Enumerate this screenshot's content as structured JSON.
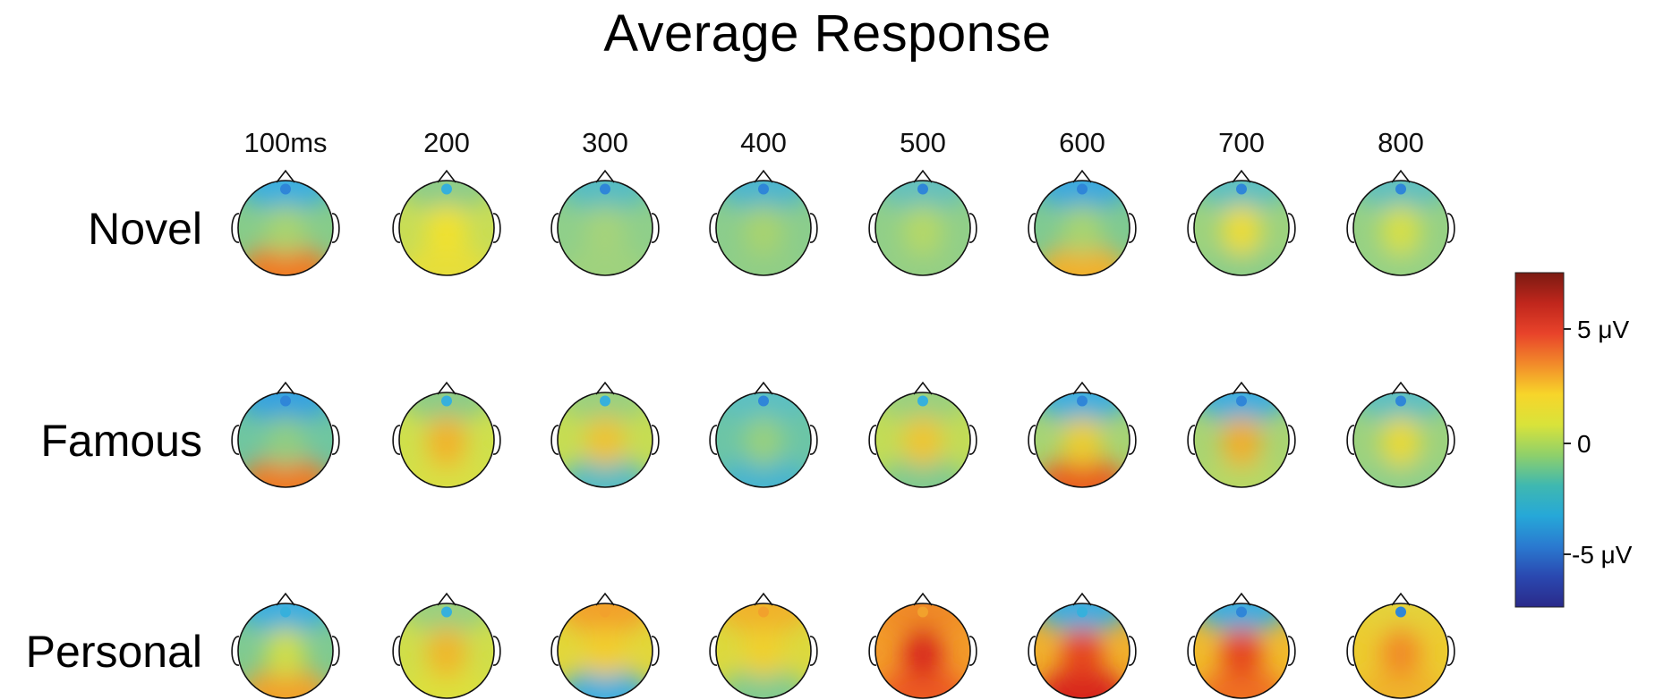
{
  "title": "Average Response",
  "time_labels": [
    "100ms",
    "200",
    "300",
    "400",
    "500",
    "600",
    "700",
    "800"
  ],
  "conditions": [
    "Novel",
    "Famous",
    "Personal"
  ],
  "colorbar": {
    "labels": [
      "5 μV",
      "0",
      "-5 μV"
    ],
    "stops": [
      "#7a1a12",
      "#c0261c",
      "#e8432a",
      "#f28a2a",
      "#f7d52a",
      "#d9e33a",
      "#8fd06a",
      "#3fb8b0",
      "#26a8d8",
      "#2a7ad0",
      "#2a48b0",
      "#2a2a8a"
    ]
  },
  "palette": {
    "neg2": "#2a7fd2",
    "neg1": "#36b7d9",
    "zero": "#7fcf94",
    "pos1": "#e7e23a",
    "pos2": "#f2a12c",
    "pos3": "#e5431f"
  },
  "maps": [
    [
      {
        "base": "#86cc8a",
        "front": "#3aaee0",
        "center": "#a8d470",
        "back": "#f07a22",
        "spot": "#2f86d8"
      },
      {
        "base": "#c8dd56",
        "front": "#8ccc8a",
        "center": "#f2e12e",
        "back": "#e6de3a",
        "spot": "#36b0dc"
      },
      {
        "base": "#8fcf8a",
        "front": "#55bcc4",
        "center": "#a6d37a",
        "back": "#9fd27e",
        "spot": "#2f86d8"
      },
      {
        "base": "#8bcd8c",
        "front": "#4cb5cf",
        "center": "#a9d36e",
        "back": "#90ce86",
        "spot": "#2f86d8"
      },
      {
        "base": "#91cf88",
        "front": "#63c0bd",
        "center": "#b6d866",
        "back": "#94cf84",
        "spot": "#2f86d8"
      },
      {
        "base": "#7fca91",
        "front": "#3aa8df",
        "center": "#a8d470",
        "back": "#f2b02a",
        "spot": "#2f86d8"
      },
      {
        "base": "#9cd27e",
        "front": "#5bbfc2",
        "center": "#efdc34",
        "back": "#8ccd88",
        "spot": "#2f86d8"
      },
      {
        "base": "#96d184",
        "front": "#5fbfc0",
        "center": "#d8df44",
        "back": "#96d184",
        "spot": "#2f86d8"
      }
    ],
    [
      {
        "base": "#6fc6a0",
        "front": "#34a2e0",
        "center": "#90ce82",
        "back": "#ef7a24",
        "spot": "#2f86d8"
      },
      {
        "base": "#cfe04c",
        "front": "#8ccc88",
        "center": "#f2b22c",
        "back": "#d8df44",
        "spot": "#36b0dc"
      },
      {
        "base": "#c6dd52",
        "front": "#9ad080",
        "center": "#efc232",
        "back": "#55bcc4",
        "spot": "#36b0dc"
      },
      {
        "base": "#6cc5a6",
        "front": "#5bbfc2",
        "center": "#98d07e",
        "back": "#46b4cf",
        "spot": "#2f86d8"
      },
      {
        "base": "#c2dc56",
        "front": "#9ad080",
        "center": "#f0c430",
        "back": "#7fca91",
        "spot": "#36b0dc"
      },
      {
        "base": "#a6d474",
        "front": "#3aaee0",
        "center": "#eccd32",
        "back": "#e85e22",
        "spot": "#2f86d8"
      },
      {
        "base": "#a9d472",
        "front": "#3aaee0",
        "center": "#f1ad2c",
        "back": "#b6d866",
        "spot": "#2f86d8"
      },
      {
        "base": "#9cd27e",
        "front": "#5bbfc2",
        "center": "#ead934",
        "back": "#8fcf8a",
        "spot": "#2f86d8"
      }
    ],
    [
      {
        "base": "#7fca91",
        "front": "#3aaee0",
        "center": "#d0de4a",
        "back": "#f2a12c",
        "spot": "#36b0dc"
      },
      {
        "base": "#d0de4a",
        "front": "#9ad080",
        "center": "#f0b62c",
        "back": "#dce03e",
        "spot": "#36b0dc"
      },
      {
        "base": "#e2d73a",
        "front": "#f2a12c",
        "center": "#f2cd2e",
        "back": "#3aaee0",
        "spot": "#f2a12c"
      },
      {
        "base": "#dcd93e",
        "front": "#f0b22c",
        "center": "#f0d02e",
        "back": "#7fca91",
        "spot": "#f2a12c"
      },
      {
        "base": "#f29a2a",
        "front": "#ef8a28",
        "center": "#d8271f",
        "back": "#ec5a24",
        "spot": "#f2a12c"
      },
      {
        "base": "#f0b02c",
        "front": "#3aaee0",
        "center": "#e5431f",
        "back": "#d8271f",
        "spot": "#36b0dc"
      },
      {
        "base": "#f0ba2c",
        "front": "#3aaee0",
        "center": "#e5431f",
        "back": "#ef7024",
        "spot": "#2f86d8"
      },
      {
        "base": "#eccb30",
        "front": "#e4d23a",
        "center": "#f18a28",
        "back": "#efb42c",
        "spot": "#2f86d8"
      }
    ]
  ]
}
